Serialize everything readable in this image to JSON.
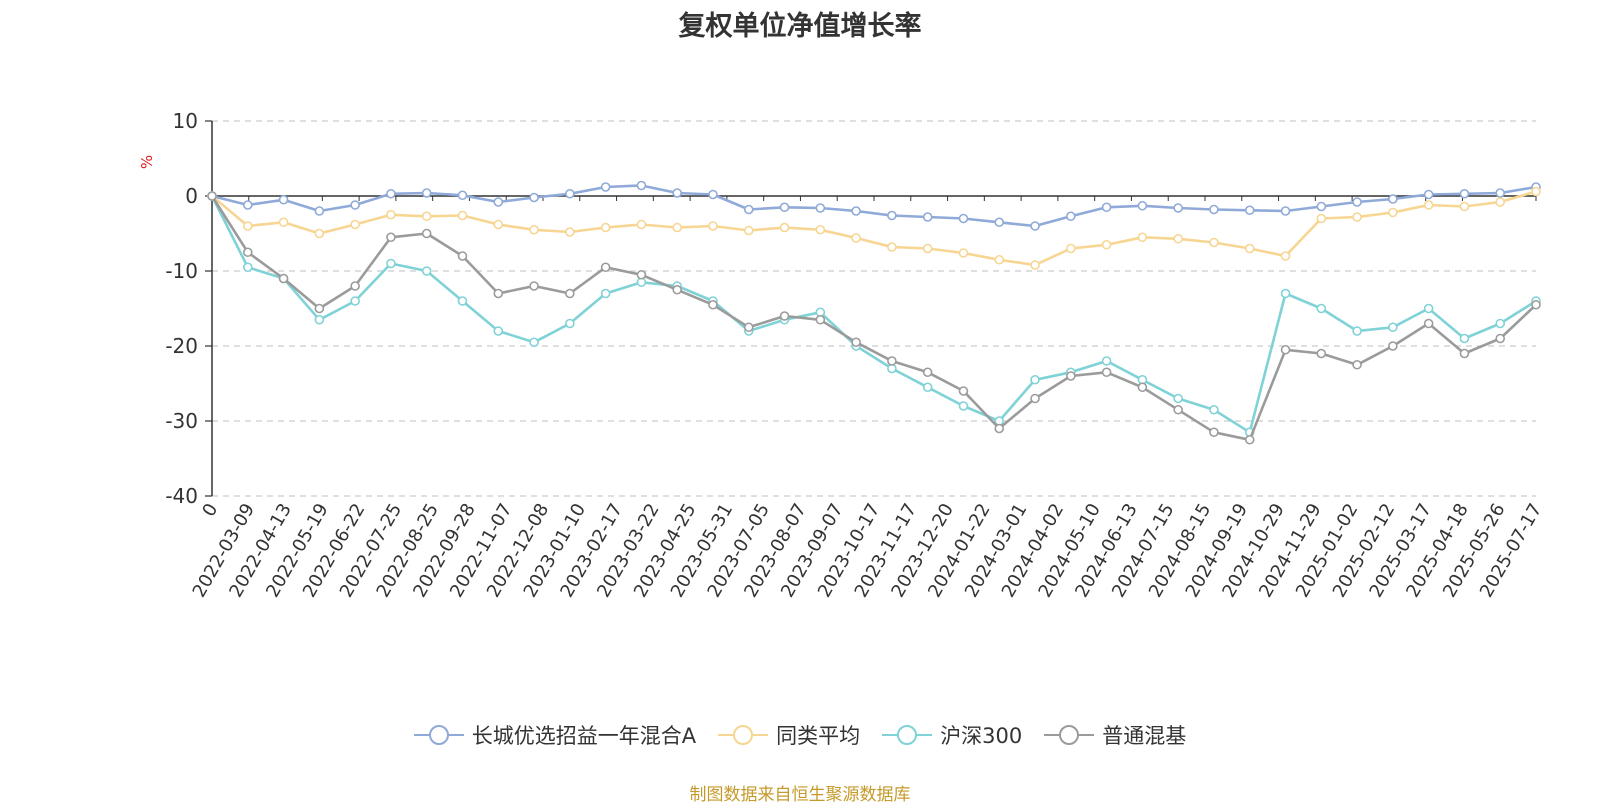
{
  "chart_data": {
    "type": "line",
    "title": "复权单位净值增长率",
    "ylabel": "%",
    "ylim": [
      -40,
      10
    ],
    "y_ticks": [
      10,
      0,
      -10,
      -20,
      -30,
      -40
    ],
    "x_tick_labels": [
      "0",
      "2022-03-09",
      "2022-04-13",
      "2022-05-19",
      "2022-06-22",
      "2022-07-25",
      "2022-08-25",
      "2022-09-28",
      "2022-11-07",
      "2022-12-08",
      "2023-01-10",
      "2023-02-17",
      "2023-03-22",
      "2023-04-25",
      "2023-05-31",
      "2023-07-05",
      "2023-08-07",
      "2023-09-07",
      "2023-10-17",
      "2023-11-17",
      "2023-12-20",
      "2024-01-22",
      "2024-03-01",
      "2024-04-02",
      "2024-05-10",
      "2024-06-13",
      "2024-07-15",
      "2024-08-15",
      "2024-09-19",
      "2024-10-29",
      "2024-11-29",
      "2025-01-02",
      "2025-02-12",
      "2025-03-17",
      "2025-04-18",
      "2025-05-26",
      "2025-07-17"
    ],
    "grid": "horizontal dashed",
    "legend_position": "bottom",
    "series": [
      {
        "name": "长城优选招益一年混合A",
        "color": "#8fa9d8",
        "values": [
          0,
          -1.2,
          -0.5,
          -2.0,
          -1.2,
          0.3,
          0.4,
          0.1,
          -0.8,
          -0.2,
          0.3,
          1.2,
          1.4,
          0.4,
          0.2,
          -1.8,
          -1.5,
          -1.6,
          -2.0,
          -2.6,
          -2.8,
          -3.0,
          -3.5,
          -4.0,
          -2.7,
          -1.5,
          -1.3,
          -1.6,
          -1.8,
          -1.9,
          -2.0,
          -1.4,
          -0.8,
          -0.4,
          0.2,
          0.3,
          0.4,
          1.2
        ]
      },
      {
        "name": "同类平均",
        "color": "#f7d592",
        "values": [
          0,
          -4.0,
          -3.5,
          -5.0,
          -3.8,
          -2.5,
          -2.7,
          -2.6,
          -3.8,
          -4.5,
          -4.8,
          -4.2,
          -3.8,
          -4.2,
          -4.0,
          -4.6,
          -4.2,
          -4.5,
          -5.6,
          -6.8,
          -7.0,
          -7.6,
          -8.5,
          -9.2,
          -7.0,
          -6.5,
          -5.5,
          -5.7,
          -6.2,
          -7.0,
          -8.0,
          -3.0,
          -2.8,
          -2.2,
          -1.2,
          -1.4,
          -0.8,
          0.6
        ]
      },
      {
        "name": "沪深300",
        "color": "#7fd2d6",
        "values": [
          0,
          -9.5,
          -11.0,
          -16.5,
          -14.0,
          -9.0,
          -10.0,
          -14.0,
          -18.0,
          -19.5,
          -17.0,
          -13.0,
          -11.5,
          -12.0,
          -14.0,
          -18.0,
          -16.5,
          -15.5,
          -20.0,
          -23.0,
          -25.5,
          -28.0,
          -30.0,
          -24.5,
          -23.5,
          -22.0,
          -24.5,
          -27.0,
          -28.5,
          -31.5,
          -13.0,
          -15.0,
          -18.0,
          -17.5,
          -15.0,
          -19.0,
          -17.0,
          -14.0
        ]
      },
      {
        "name": "普通混基",
        "color": "#9b9b9b",
        "values": [
          0,
          -7.5,
          -11.0,
          -15.0,
          -12.0,
          -5.5,
          -5.0,
          -8.0,
          -13.0,
          -12.0,
          -13.0,
          -9.5,
          -10.5,
          -12.5,
          -14.5,
          -17.5,
          -16.0,
          -16.5,
          -19.5,
          -22.0,
          -23.5,
          -26.0,
          -31.0,
          -27.0,
          -24.0,
          -23.5,
          -25.5,
          -28.5,
          -31.5,
          -32.5,
          -20.5,
          -21.0,
          -22.5,
          -20.0,
          -17.0,
          -21.0,
          -19.0,
          -14.5
        ]
      }
    ]
  },
  "legend": {
    "items": [
      "长城优选招益一年混合A",
      "同类平均",
      "沪深300",
      "普通混基"
    ]
  },
  "footer": {
    "source_text": "制图数据来自恒生聚源数据库"
  }
}
